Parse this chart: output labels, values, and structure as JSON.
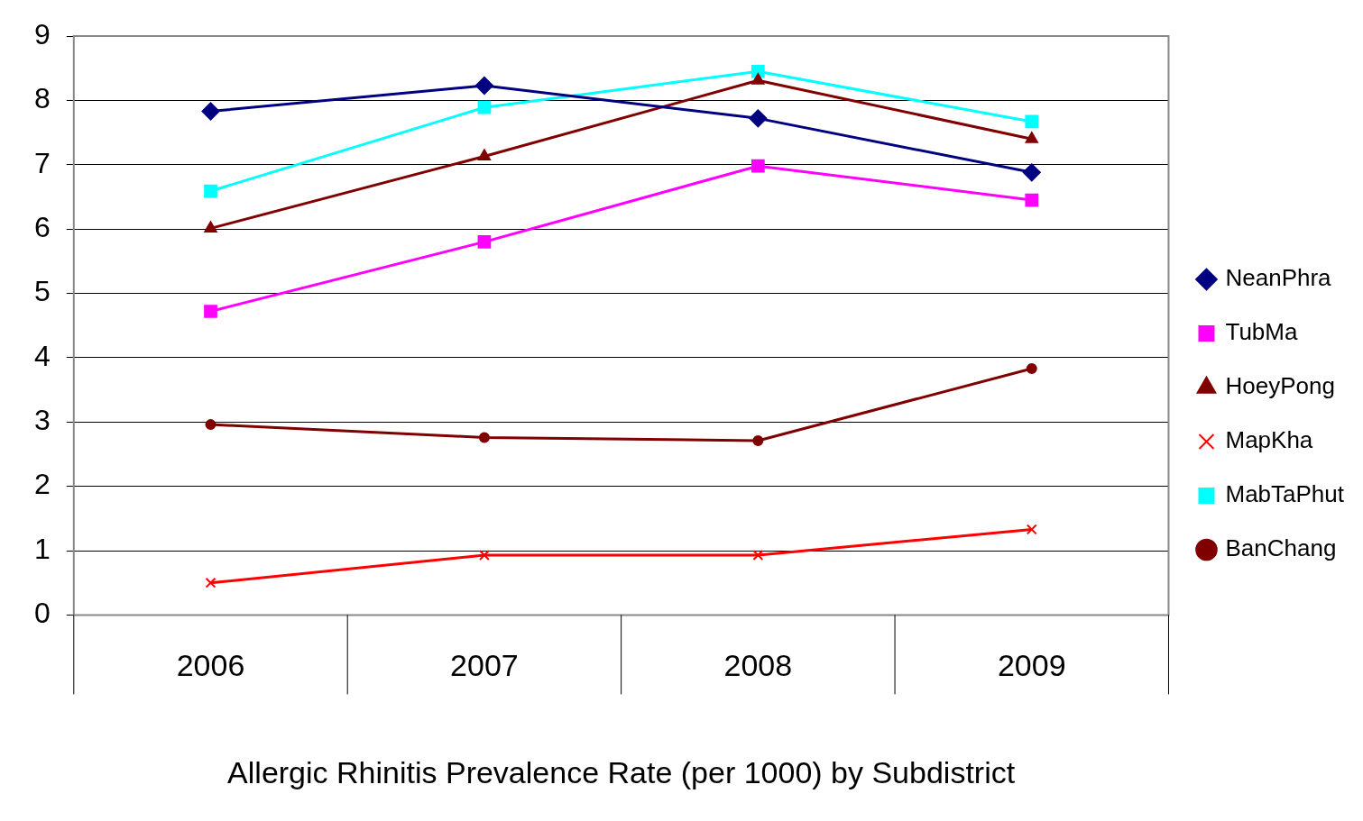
{
  "chart_data": {
    "type": "line",
    "xlabel": "Allergic Rhinitis Prevalence Rate (per 1000) by Subdistrict",
    "categories": [
      "2006",
      "2007",
      "2008",
      "2009"
    ],
    "series": [
      {
        "name": "NeanPhra",
        "color": "#000080",
        "marker": "diamond",
        "values": [
          7.83,
          8.23,
          7.72,
          6.88
        ]
      },
      {
        "name": "TubMa",
        "color": "#ff00ff",
        "marker": "square",
        "values": [
          4.72,
          5.8,
          6.98,
          6.45
        ]
      },
      {
        "name": "HoeyPong",
        "color": "#800000",
        "marker": "triangle",
        "values": [
          6.01,
          7.13,
          8.31,
          7.4
        ]
      },
      {
        "name": "MapKha",
        "color": "#ff0000",
        "marker": "cross",
        "values": [
          0.5,
          0.93,
          0.93,
          1.33
        ]
      },
      {
        "name": "MabTaPhut",
        "color": "#00ffff",
        "marker": "square",
        "values": [
          6.59,
          7.89,
          8.45,
          7.67
        ]
      },
      {
        "name": "BanChang",
        "color": "#800000",
        "marker": "circle",
        "values": [
          2.96,
          2.76,
          2.71,
          3.83
        ]
      }
    ],
    "ylim": [
      0,
      9
    ],
    "yticks": [
      0,
      1,
      2,
      3,
      4,
      5,
      6,
      7,
      8,
      9
    ],
    "grid": "y",
    "legend": "right"
  }
}
